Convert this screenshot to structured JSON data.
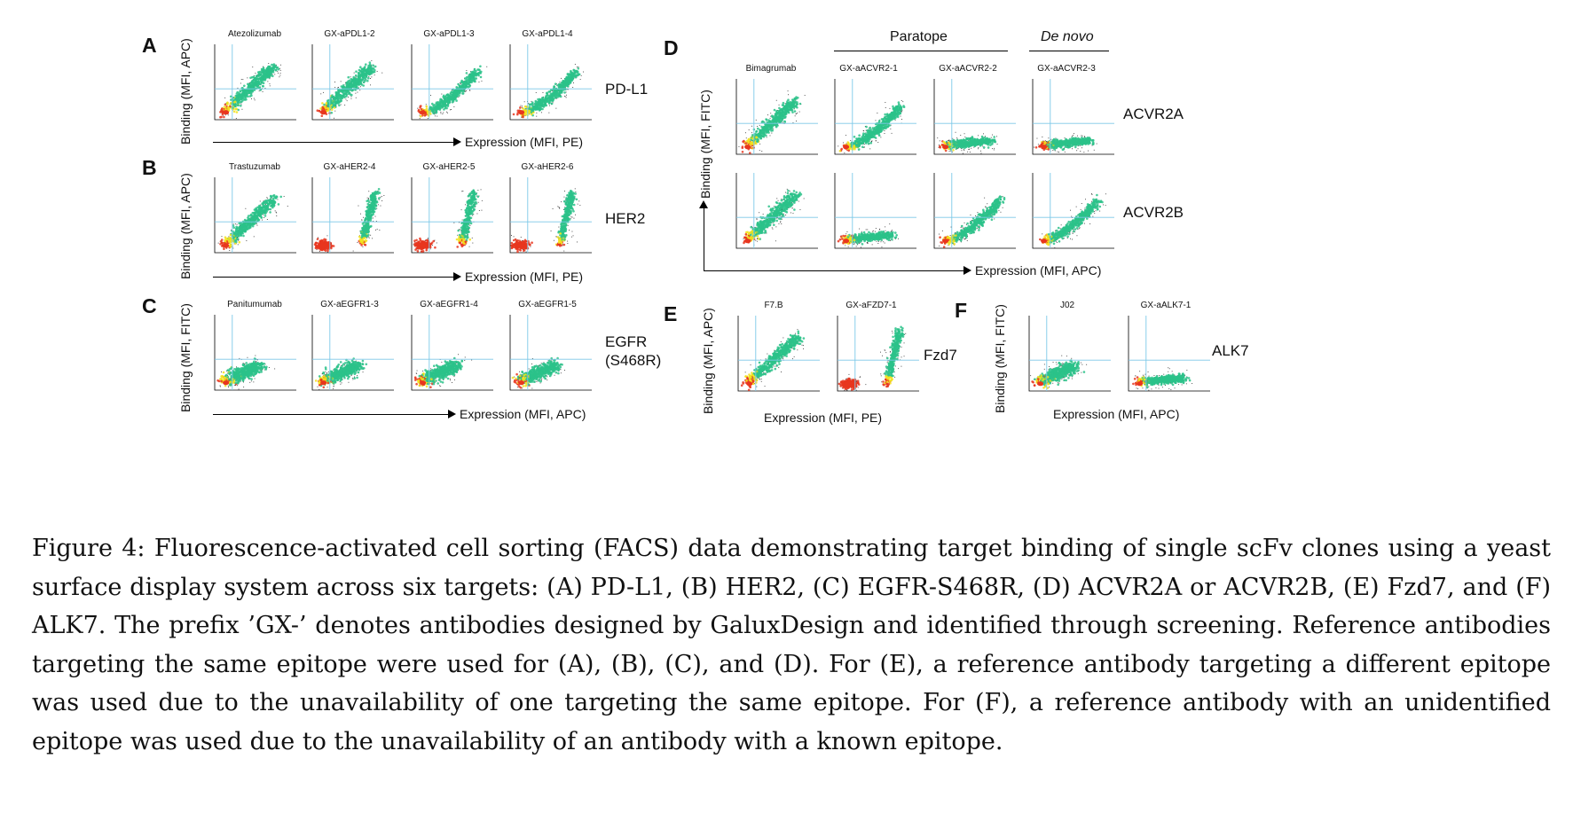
{
  "panels": {
    "A": {
      "letter": "A",
      "titles": [
        "Atezolizumab",
        "GX-aPDL1-2",
        "GX-aPDL1-3",
        "GX-aPDL1-4"
      ],
      "target": "PD-L1",
      "ylabel": "Binding (MFI, APC)",
      "xlabel": "Expression (MFI, PE)"
    },
    "B": {
      "letter": "B",
      "titles": [
        "Trastuzumab",
        "GX-aHER2-4",
        "GX-aHER2-5",
        "GX-aHER2-6"
      ],
      "target": "HER2",
      "ylabel": "Binding (MFI, APC)",
      "xlabel": "Expression (MFI, PE)"
    },
    "C": {
      "letter": "C",
      "titles": [
        "Panitumumab",
        "GX-aEGFR1-3",
        "GX-aEGFR1-4",
        "GX-aEGFR1-5"
      ],
      "target_line1": "EGFR",
      "target_line2": "(S468R)",
      "ylabel": "Binding (MFI, FITC)",
      "xlabel": "Expression (MFI, APC)"
    },
    "D": {
      "letter": "D",
      "group_paratope": "Paratope",
      "group_denovo": "De novo",
      "titles": [
        "Bimagrumab",
        "GX-aACVR2-1",
        "GX-aACVR2-2",
        "GX-aACVR2-3"
      ],
      "target1": "ACVR2A",
      "target2": "ACVR2B",
      "ylabel": "Binding (MFI, FITC)",
      "xlabel": "Expression (MFI, APC)"
    },
    "E": {
      "letter": "E",
      "titles": [
        "F7.B",
        "GX-aFZD7-1"
      ],
      "target": "Fzd7",
      "ylabel": "Binding (MFI, APC)",
      "xlabel": "Expression (MFI, PE)"
    },
    "F": {
      "letter": "F",
      "titles": [
        "J02",
        "GX-aALK7-1"
      ],
      "target": "ALK7",
      "ylabel": "Binding (MFI, FITC)",
      "xlabel": "Expression (MFI, APC)"
    }
  },
  "plot_shapes": {
    "A": [
      "diag",
      "diag",
      "curve",
      "curve"
    ],
    "B": [
      "diag",
      "vertical",
      "vertical",
      "vertical"
    ],
    "C": [
      "blob",
      "blob",
      "blob",
      "blob"
    ],
    "D1": [
      "diag",
      "curve",
      "flat",
      "flat"
    ],
    "D2": [
      "diag",
      "flat",
      "curve",
      "curve"
    ],
    "E": [
      "diag",
      "vertical"
    ],
    "F": [
      "blob",
      "flat"
    ]
  },
  "colors": {
    "gate": "#7cc8e8",
    "dense_core": "#e8361e",
    "mid": "#f2e21c",
    "low": "#2bc28a",
    "sparse": "#333333"
  },
  "caption": "Figure 4:   Fluorescence-activated cell sorting (FACS) data demonstrating target binding of single scFv clones using a yeast surface display system across six targets: (A) PD-L1, (B) HER2, (C) EGFR-S468R, (D) ACVR2A or ACVR2B, (E) Fzd7, and (F) ALK7.  The prefix ’GX-’ denotes antibodies designed by GaluxDesign and identified through screening. Reference antibodies targeting the same epitope were used for (A), (B), (C), and (D). For (E), a reference antibody targeting a different epitope was used due to the unavailability of one targeting the same epitope. For (F), a reference antibody with an unidentified epitope was used due to the unavailability of an antibody with a known epitope."
}
